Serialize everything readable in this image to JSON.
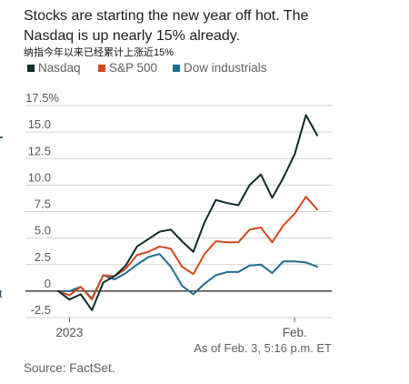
{
  "edge_fragment": "t",
  "chart_data": {
    "type": "line",
    "title": "Stocks are starting the new year off hot. The Nasdaq is up nearly 15% already.",
    "subtitle": "纳指今年以来已经累计上涨近15%",
    "x": [
      "2022-12-30",
      "2023-01-03",
      "2023-01-04",
      "2023-01-05",
      "2023-01-06",
      "2023-01-09",
      "2023-01-10",
      "2023-01-11",
      "2023-01-12",
      "2023-01-13",
      "2023-01-17",
      "2023-01-18",
      "2023-01-19",
      "2023-01-20",
      "2023-01-23",
      "2023-01-24",
      "2023-01-25",
      "2023-01-26",
      "2023-01-27",
      "2023-01-30",
      "2023-01-31",
      "2023-02-01",
      "2023-02-02",
      "2023-02-03"
    ],
    "series": [
      {
        "name": "Nasdaq",
        "color": "#0e2a2a",
        "values": [
          0,
          -0.8,
          -0.3,
          -1.8,
          0.8,
          1.4,
          2.4,
          4.2,
          4.9,
          5.6,
          5.8,
          4.7,
          3.7,
          6.5,
          8.6,
          8.3,
          8.1,
          10.0,
          11.0,
          8.8,
          10.7,
          12.9,
          16.6,
          14.7
        ]
      },
      {
        "name": "S&P 500",
        "color": "#d4471d",
        "values": [
          0,
          -0.4,
          0.4,
          -0.8,
          1.5,
          1.4,
          2.1,
          3.4,
          3.7,
          4.2,
          4.0,
          2.3,
          1.6,
          3.5,
          4.7,
          4.6,
          4.6,
          5.8,
          6.0,
          4.6,
          6.2,
          7.3,
          8.9,
          7.7
        ]
      },
      {
        "name": "Dow industrials",
        "color": "#1f6d8e",
        "values": [
          0,
          0.0,
          0.4,
          -0.7,
          1.5,
          1.1,
          1.7,
          2.5,
          3.2,
          3.5,
          2.3,
          0.5,
          -0.3,
          0.7,
          1.5,
          1.8,
          1.8,
          2.4,
          2.5,
          1.7,
          2.8,
          2.8,
          2.7,
          2.3
        ]
      }
    ],
    "y_ticks": [
      17.5,
      15,
      12.5,
      10,
      7.5,
      5,
      2.5,
      0,
      -2.5
    ],
    "y_tick_labels": [
      "17.5%",
      "15.0",
      "12.5",
      "10.0",
      "7.5",
      "5.0",
      "2.5",
      "0",
      "-2.5"
    ],
    "x_ticks": [
      {
        "x": "2023-01-03",
        "label": "2023"
      },
      {
        "x": "2023-02-01",
        "label": "Feb."
      }
    ],
    "ylim": [
      -2.5,
      17.5
    ],
    "grid": true,
    "legend": "top-left",
    "annotation": "As of Feb. 3, 5:16 p.m. ET",
    "source": "Source: FactSet."
  }
}
